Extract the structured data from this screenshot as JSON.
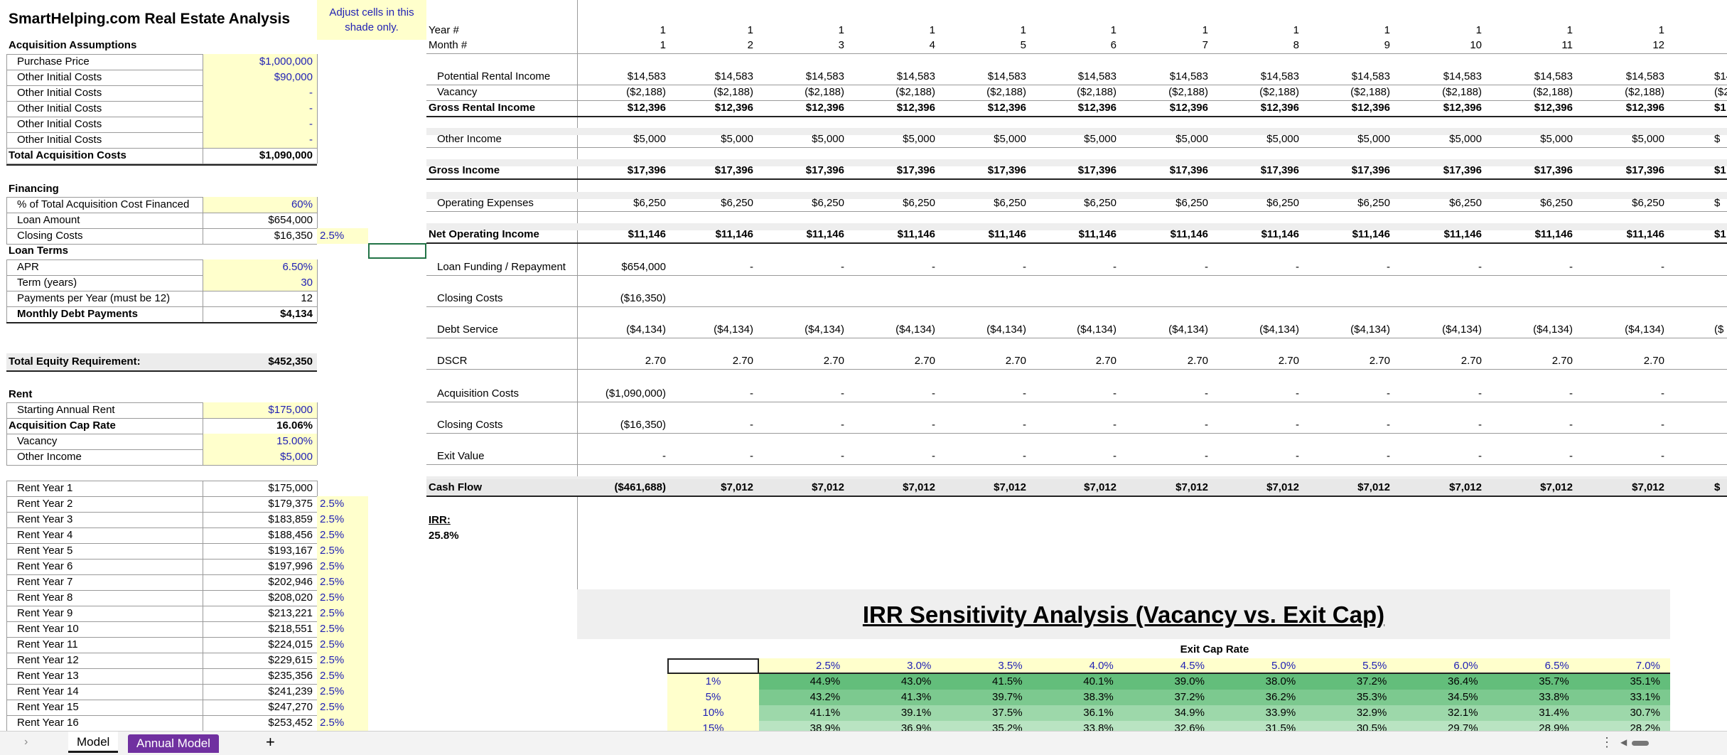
{
  "title": "SmartHelping.com Real Estate Analysis",
  "note": [
    "Adjust cells in this",
    "shade only."
  ],
  "left_panel": {
    "acquisition": {
      "header": "Acquisition Assumptions",
      "rows": [
        {
          "label": "Purchase Price",
          "value": "$1,000,000"
        },
        {
          "label": "Other Initial Costs",
          "value": "$90,000"
        },
        {
          "label": "Other Initial Costs",
          "value": "-"
        },
        {
          "label": "Other Initial Costs",
          "value": "-"
        },
        {
          "label": "Other Initial Costs",
          "value": "-"
        },
        {
          "label": "Other Initial Costs",
          "value": "-"
        }
      ],
      "total_label": "Total Acquisition Costs",
      "total_value": "$1,090,000"
    },
    "financing": {
      "header": "Financing",
      "rows": [
        {
          "label": "% of Total Acquisition Cost Financed",
          "value": "60%"
        },
        {
          "label": "Loan Amount",
          "value": "$654,000"
        },
        {
          "label": "Closing Costs",
          "value": "$16,350",
          "extra": "2.5%"
        }
      ]
    },
    "loan_terms": {
      "header": "Loan Terms",
      "rows": [
        {
          "label": "APR",
          "value": "6.50%"
        },
        {
          "label": "Term (years)",
          "value": "30"
        },
        {
          "label": "Payments per Year (must be 12)",
          "value": "12"
        },
        {
          "label": "Monthly Debt Payments",
          "value": "$4,134"
        }
      ]
    },
    "equity": {
      "label": "Total Equity Requirement:",
      "value": "$452,350"
    },
    "rent": {
      "header": "Rent",
      "rows": [
        {
          "label": "Starting Annual Rent",
          "value": "$175,000"
        },
        {
          "label": "Acquisition Cap Rate",
          "value": "16.06%"
        },
        {
          "label": "Vacancy",
          "value": "15.00%"
        },
        {
          "label": "Other Income",
          "value": "$5,000"
        }
      ]
    },
    "rent_years": [
      {
        "label": "Rent Year 1",
        "value": "$175,000",
        "growth": ""
      },
      {
        "label": "Rent Year 2",
        "value": "$179,375",
        "growth": "2.5%"
      },
      {
        "label": "Rent Year 3",
        "value": "$183,859",
        "growth": "2.5%"
      },
      {
        "label": "Rent Year 4",
        "value": "$188,456",
        "growth": "2.5%"
      },
      {
        "label": "Rent Year 5",
        "value": "$193,167",
        "growth": "2.5%"
      },
      {
        "label": "Rent Year 6",
        "value": "$197,996",
        "growth": "2.5%"
      },
      {
        "label": "Rent Year 7",
        "value": "$202,946",
        "growth": "2.5%"
      },
      {
        "label": "Rent Year 8",
        "value": "$208,020",
        "growth": "2.5%"
      },
      {
        "label": "Rent Year 9",
        "value": "$213,221",
        "growth": "2.5%"
      },
      {
        "label": "Rent Year 10",
        "value": "$218,551",
        "growth": "2.5%"
      },
      {
        "label": "Rent Year 11",
        "value": "$224,015",
        "growth": "2.5%"
      },
      {
        "label": "Rent Year 12",
        "value": "$229,615",
        "growth": "2.5%"
      },
      {
        "label": "Rent Year 13",
        "value": "$235,356",
        "growth": "2.5%"
      },
      {
        "label": "Rent Year 14",
        "value": "$241,239",
        "growth": "2.5%"
      },
      {
        "label": "Rent Year 15",
        "value": "$247,270",
        "growth": "2.5%"
      },
      {
        "label": "Rent Year 16",
        "value": "$253,452",
        "growth": "2.5%"
      }
    ]
  },
  "model": {
    "year_label": "Year #",
    "month_label": "Month #",
    "years": [
      "1",
      "1",
      "1",
      "1",
      "1",
      "1",
      "1",
      "1",
      "1",
      "1",
      "1",
      "1"
    ],
    "months": [
      "1",
      "2",
      "3",
      "4",
      "5",
      "6",
      "7",
      "8",
      "9",
      "10",
      "11",
      "12"
    ],
    "rows": [
      {
        "label": "Potential Rental Income",
        "bold": false,
        "values": [
          "$14,583",
          "$14,583",
          "$14,583",
          "$14,583",
          "$14,583",
          "$14,583",
          "$14,583",
          "$14,583",
          "$14,583",
          "$14,583",
          "$14,583",
          "$14,583"
        ],
        "partial": "$14"
      },
      {
        "label": "Vacancy",
        "bold": false,
        "values": [
          "($2,188)",
          "($2,188)",
          "($2,188)",
          "($2,188)",
          "($2,188)",
          "($2,188)",
          "($2,188)",
          "($2,188)",
          "($2,188)",
          "($2,188)",
          "($2,188)",
          "($2,188)"
        ],
        "partial": "($2"
      },
      {
        "label": "Gross Rental Income",
        "bold": true,
        "values": [
          "$12,396",
          "$12,396",
          "$12,396",
          "$12,396",
          "$12,396",
          "$12,396",
          "$12,396",
          "$12,396",
          "$12,396",
          "$12,396",
          "$12,396",
          "$12,396"
        ],
        "partial": "$1"
      },
      {
        "label": "Other Income",
        "bold": false,
        "values": [
          "$5,000",
          "$5,000",
          "$5,000",
          "$5,000",
          "$5,000",
          "$5,000",
          "$5,000",
          "$5,000",
          "$5,000",
          "$5,000",
          "$5,000",
          "$5,000"
        ],
        "partial": "$"
      },
      {
        "label": "Gross Income",
        "bold": true,
        "values": [
          "$17,396",
          "$17,396",
          "$17,396",
          "$17,396",
          "$17,396",
          "$17,396",
          "$17,396",
          "$17,396",
          "$17,396",
          "$17,396",
          "$17,396",
          "$17,396"
        ],
        "partial": "$1"
      },
      {
        "label": "Operating Expenses",
        "bold": false,
        "values": [
          "$6,250",
          "$6,250",
          "$6,250",
          "$6,250",
          "$6,250",
          "$6,250",
          "$6,250",
          "$6,250",
          "$6,250",
          "$6,250",
          "$6,250",
          "$6,250"
        ],
        "partial": "$"
      },
      {
        "label": "Net Operating Income",
        "bold": true,
        "values": [
          "$11,146",
          "$11,146",
          "$11,146",
          "$11,146",
          "$11,146",
          "$11,146",
          "$11,146",
          "$11,146",
          "$11,146",
          "$11,146",
          "$11,146",
          "$11,146"
        ],
        "partial": "$1"
      },
      {
        "label": "Loan Funding / Repayment",
        "bold": false,
        "values": [
          "$654,000",
          "-",
          "-",
          "-",
          "-",
          "-",
          "-",
          "-",
          "-",
          "-",
          "-",
          "-"
        ],
        "partial": ""
      },
      {
        "label": "Closing Costs",
        "bold": false,
        "values": [
          "($16,350)",
          "",
          "",
          "",
          "",
          "",
          "",
          "",
          "",
          "",
          "",
          ""
        ],
        "partial": ""
      },
      {
        "label": "Debt Service",
        "bold": false,
        "values": [
          "($4,134)",
          "($4,134)",
          "($4,134)",
          "($4,134)",
          "($4,134)",
          "($4,134)",
          "($4,134)",
          "($4,134)",
          "($4,134)",
          "($4,134)",
          "($4,134)",
          "($4,134)"
        ],
        "partial": "($"
      },
      {
        "label": "DSCR",
        "bold": false,
        "values": [
          "2.70",
          "2.70",
          "2.70",
          "2.70",
          "2.70",
          "2.70",
          "2.70",
          "2.70",
          "2.70",
          "2.70",
          "2.70",
          "2.70"
        ],
        "partial": ""
      },
      {
        "label": "Acquisition Costs",
        "bold": false,
        "values": [
          "($1,090,000)",
          "-",
          "-",
          "-",
          "-",
          "-",
          "-",
          "-",
          "-",
          "-",
          "-",
          "-"
        ],
        "partial": ""
      },
      {
        "label": "Closing Costs",
        "bold": false,
        "values": [
          "($16,350)",
          "-",
          "-",
          "-",
          "-",
          "-",
          "-",
          "-",
          "-",
          "-",
          "-",
          "-"
        ],
        "partial": ""
      },
      {
        "label": "Exit Value",
        "bold": false,
        "values": [
          "-",
          "-",
          "-",
          "-",
          "-",
          "-",
          "-",
          "-",
          "-",
          "-",
          "-",
          "-"
        ],
        "partial": ""
      },
      {
        "label": "Cash Flow",
        "bold": true,
        "values": [
          "($461,688)",
          "$7,012",
          "$7,012",
          "$7,012",
          "$7,012",
          "$7,012",
          "$7,012",
          "$7,012",
          "$7,012",
          "$7,012",
          "$7,012",
          "$7,012"
        ],
        "partial": "$"
      }
    ],
    "irr_label": "IRR:",
    "irr_value": "25.8%"
  },
  "sensitivity": {
    "title": "IRR Sensitivity Analysis (Vacancy vs. Exit Cap)",
    "col_header": "Exit Cap Rate",
    "cols": [
      "2.5%",
      "3.0%",
      "3.5%",
      "4.0%",
      "4.5%",
      "5.0%",
      "5.5%",
      "6.0%",
      "6.5%",
      "7.0%"
    ],
    "rows": [
      {
        "vac": "1%",
        "values": [
          "44.9%",
          "43.0%",
          "41.5%",
          "40.1%",
          "39.0%",
          "38.0%",
          "37.2%",
          "36.4%",
          "35.7%",
          "35.1%"
        ]
      },
      {
        "vac": "5%",
        "values": [
          "43.2%",
          "41.3%",
          "39.7%",
          "38.3%",
          "37.2%",
          "36.2%",
          "35.3%",
          "34.5%",
          "33.8%",
          "33.1%"
        ]
      },
      {
        "vac": "10%",
        "values": [
          "41.1%",
          "39.1%",
          "37.5%",
          "36.1%",
          "34.9%",
          "33.9%",
          "32.9%",
          "32.1%",
          "31.4%",
          "30.7%"
        ]
      },
      {
        "vac": "15%",
        "values": [
          "38.9%",
          "36.9%",
          "35.2%",
          "33.8%",
          "32.6%",
          "31.5%",
          "30.5%",
          "29.7%",
          "28.9%",
          "28.2%"
        ]
      }
    ],
    "heat_colors": [
      "#63be7b",
      "#7cc98f",
      "#9dd8aa",
      "#b9e4c2"
    ]
  },
  "tabs": {
    "active": "Model",
    "other": "Annual Model",
    "add": "+",
    "nav_prev": "›",
    "more": "⋮",
    "scroll_left": "◀"
  }
}
